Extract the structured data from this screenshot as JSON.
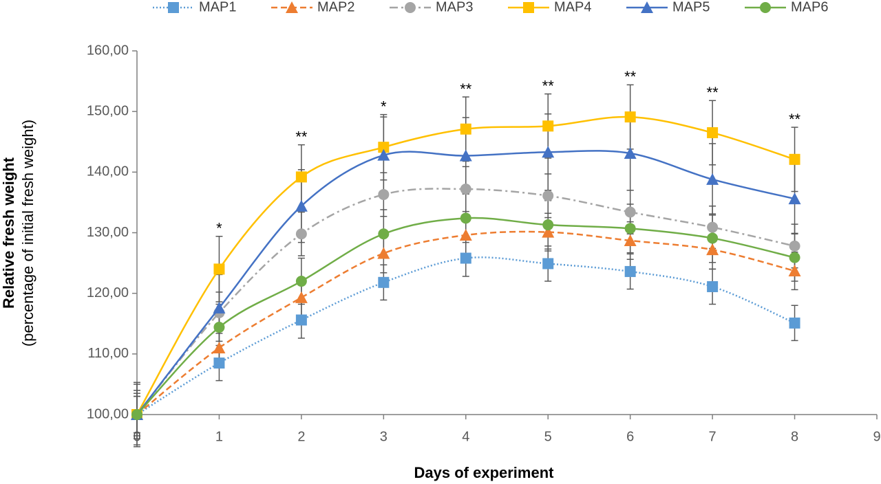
{
  "chart_data": {
    "type": "line",
    "xlabel": "Days of experiment",
    "ylabel": "Relative fresh weight",
    "ylabel_sub": "(percentage of initial fresh weight)",
    "x": [
      0,
      1,
      2,
      3,
      4,
      5,
      6,
      7,
      8
    ],
    "xlim": [
      0,
      9
    ],
    "xticks": [
      0,
      1,
      2,
      3,
      4,
      5,
      6,
      7,
      8,
      9
    ],
    "ylim": [
      100,
      160
    ],
    "yticks": [
      {
        "value": 100,
        "label": "100,00"
      },
      {
        "value": 110,
        "label": "110,00"
      },
      {
        "value": 120,
        "label": "120,00"
      },
      {
        "value": 130,
        "label": "130,00"
      },
      {
        "value": 140,
        "label": "140,00"
      },
      {
        "value": 150,
        "label": "150,00"
      },
      {
        "value": 160,
        "label": "160,00"
      }
    ],
    "smooth": true,
    "legend": "top",
    "series": [
      {
        "name": "MAP1",
        "color": "#5b9bd5",
        "line_style": "dotted",
        "marker": "square",
        "values": [
          100,
          108.5,
          115.6,
          121.8,
          125.8,
          124.9,
          123.6,
          121.1,
          115.1
        ],
        "errors": [
          3,
          2.9,
          3,
          2.9,
          3,
          2.9,
          2.9,
          2.9,
          2.9
        ]
      },
      {
        "name": "MAP2",
        "color": "#ed7d31",
        "line_style": "dashed",
        "marker": "triangle",
        "values": [
          100,
          111,
          119.3,
          126.6,
          129.6,
          130.1,
          128.7,
          127.2,
          123.7
        ],
        "errors": [
          3,
          3,
          3.1,
          3.2,
          3.2,
          3.1,
          3.1,
          3.2,
          3.1
        ]
      },
      {
        "name": "MAP3",
        "color": "#a5a5a5",
        "line_style": "dashdot",
        "marker": "circle",
        "values": [
          100,
          116.8,
          129.8,
          136.3,
          137.2,
          136.1,
          133.4,
          130.9,
          127.8
        ],
        "errors": [
          3.5,
          3.4,
          3.6,
          3.6,
          3.7,
          3.6,
          3.6,
          3.5,
          3.6
        ]
      },
      {
        "name": "MAP4",
        "color": "#ffc000",
        "line_style": "solid",
        "marker": "square",
        "values": [
          100,
          124,
          139.2,
          144.1,
          147.1,
          147.6,
          149.1,
          146.5,
          142.1
        ],
        "errors": [
          5.3,
          5.4,
          5.3,
          5.4,
          5.3,
          5.3,
          5.3,
          5.3,
          5.3
        ]
      },
      {
        "name": "MAP5",
        "color": "#4472c4",
        "line_style": "solid",
        "marker": "triangle",
        "values": [
          100,
          117.6,
          134.4,
          142.8,
          142.7,
          143.3,
          143.1,
          138.8,
          135.6
        ],
        "errors": [
          5,
          5.5,
          6,
          6.3,
          6.3,
          6.3,
          6.1,
          5.9,
          5.7
        ]
      },
      {
        "name": "MAP6",
        "color": "#70ad47",
        "line_style": "solid",
        "marker": "circle",
        "values": [
          100,
          114.4,
          122,
          129.8,
          132.4,
          131.3,
          130.7,
          129.1,
          125.9
        ],
        "errors": [
          4,
          3.8,
          3.8,
          4,
          4,
          4,
          4,
          4,
          3.9
        ]
      }
    ],
    "annotations": [
      {
        "x": 1,
        "text": "*"
      },
      {
        "x": 2,
        "text": "**"
      },
      {
        "x": 3,
        "text": "*"
      },
      {
        "x": 4,
        "text": "**"
      },
      {
        "x": 5,
        "text": "**"
      },
      {
        "x": 6,
        "text": "**"
      },
      {
        "x": 7,
        "text": "**"
      },
      {
        "x": 8,
        "text": "**"
      }
    ]
  }
}
